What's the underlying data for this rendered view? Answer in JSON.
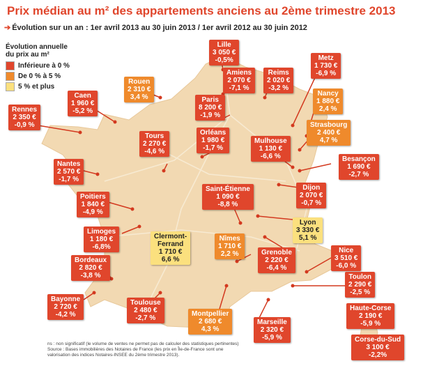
{
  "title": "Prix médian au m² des appartements anciens au 2ème trimestre 2013",
  "subtitle": "Évolution sur un an : 1er avril 2013 au 30 juin 2013 / 1er avril 2012 au 30 juin 2012",
  "legend": {
    "title_line1": "Évolution annuelle",
    "title_line2": "du prix au m²",
    "items": [
      {
        "label": "Inférieure à 0 %",
        "color": "#e0462c"
      },
      {
        "label": "De 0 % à 5 %",
        "color": "#ef8a2c"
      },
      {
        "label": "5 % et plus",
        "color": "#fbe07e"
      }
    ]
  },
  "colors": {
    "red": "#e0462c",
    "orange": "#ef8a2c",
    "yellow": "#fbe07e",
    "land": "#f2d9b2"
  },
  "cities": [
    {
      "id": "lille",
      "name": "Lille",
      "price": "3 050 €",
      "change": "-0,5%",
      "class": "red"
    },
    {
      "id": "amiens",
      "name": "Amiens",
      "price": "2 070 €",
      "change": "-7,1 %",
      "class": "red"
    },
    {
      "id": "reims",
      "name": "Reims",
      "price": "2 020 €",
      "change": "-3,2 %",
      "class": "red"
    },
    {
      "id": "metz",
      "name": "Metz",
      "price": "1 730 €",
      "change": "-6,9 %",
      "class": "red"
    },
    {
      "id": "rouen",
      "name": "Rouen",
      "price": "2 310 €",
      "change": "3,4 %",
      "class": "orange"
    },
    {
      "id": "caen",
      "name": "Caen",
      "price": "1 960 €",
      "change": "-5,2 %",
      "class": "red"
    },
    {
      "id": "paris",
      "name": "Paris",
      "price": "8 200 €",
      "change": "-1,9 %",
      "class": "red"
    },
    {
      "id": "nancy",
      "name": "Nancy",
      "price": "1 880 €",
      "change": "2,4 %",
      "class": "orange"
    },
    {
      "id": "rennes",
      "name": "Rennes",
      "price": "2 350 €",
      "change": "-0,9 %",
      "class": "red"
    },
    {
      "id": "strasbourg",
      "name": "Strasbourg",
      "price": "2 400 €",
      "change": "4,7 %",
      "class": "orange"
    },
    {
      "id": "orleans",
      "name": "Orléans",
      "price": "1 980 €",
      "change": "-1,7 %",
      "class": "red"
    },
    {
      "id": "tours",
      "name": "Tours",
      "price": "2 270 €",
      "change": "-4,6 %",
      "class": "red"
    },
    {
      "id": "mulhouse",
      "name": "Mulhouse",
      "price": "1 130 €",
      "change": "-6,6 %",
      "class": "red"
    },
    {
      "id": "nantes",
      "name": "Nantes",
      "price": "2 570 €",
      "change": "-1,7 %",
      "class": "red"
    },
    {
      "id": "besancon",
      "name": "Besançon",
      "price": "1 690 €",
      "change": "-2,7 %",
      "class": "red"
    },
    {
      "id": "dijon",
      "name": "Dijon",
      "price": "2 070 €",
      "change": "-0,7 %",
      "class": "red"
    },
    {
      "id": "saint-etienne",
      "name": "Saint-Étienne",
      "price": "1 090 €",
      "change": "-8,8 %",
      "class": "red"
    },
    {
      "id": "poitiers",
      "name": "Poitiers",
      "price": "1 840 €",
      "change": "-4,9 %",
      "class": "red"
    },
    {
      "id": "lyon",
      "name": "Lyon",
      "price": "3 330 €",
      "change": "5,1 %",
      "class": "yellow"
    },
    {
      "id": "limoges",
      "name": "Limoges",
      "price": "1 180 €",
      "change": "-6,8%",
      "class": "red"
    },
    {
      "id": "clermont",
      "name": "Clermont-",
      "name2": "Ferrand",
      "price": "1 710 €",
      "change": "6,6 %",
      "class": "yellow"
    },
    {
      "id": "nimes",
      "name": "Nîmes",
      "price": "1 710 €",
      "change": "2,2 %",
      "class": "orange"
    },
    {
      "id": "grenoble",
      "name": "Grenoble",
      "price": "2 220 €",
      "change": "-6,4 %",
      "class": "red"
    },
    {
      "id": "nice",
      "name": "Nice",
      "price": "3 510 €",
      "change": "-6,0 %",
      "class": "red"
    },
    {
      "id": "bordeaux",
      "name": "Bordeaux",
      "price": "2 820 €",
      "change": "-3,8 %",
      "class": "red"
    },
    {
      "id": "toulon",
      "name": "Toulon",
      "price": "2 290 €",
      "change": "-2,5 %",
      "class": "red"
    },
    {
      "id": "bayonne",
      "name": "Bayonne",
      "price": "2 720 €",
      "change": "-4,2 %",
      "class": "red"
    },
    {
      "id": "toulouse",
      "name": "Toulouse",
      "price": "2 480 €",
      "change": "-2,7 %",
      "class": "red"
    },
    {
      "id": "montpellier",
      "name": "Montpellier",
      "price": "2 680 €",
      "change": "4,3 %",
      "class": "orange"
    },
    {
      "id": "marseille",
      "name": "Marseille",
      "price": "2 320 €",
      "change": "-5,9 %",
      "class": "red"
    },
    {
      "id": "haute-corse",
      "name": "Haute-Corse",
      "price": "2 190 €",
      "change": "-5,9 %",
      "class": "red"
    },
    {
      "id": "corse-du-sud",
      "name": "Corse-du-Sud",
      "price": "3 100 €",
      "change": "-2,2%",
      "class": "red"
    }
  ],
  "footnote": {
    "line1": "ns : non significatif (le volume de ventes ne permet pas de calculer des statistiques pertinentes)",
    "line2": "Source : Bases immobilières des Notaires de France (les prix en Île-de-France sont une",
    "line3": "valorisation des indices Notaires-INSEE du 2ème trimestre 2013)."
  }
}
